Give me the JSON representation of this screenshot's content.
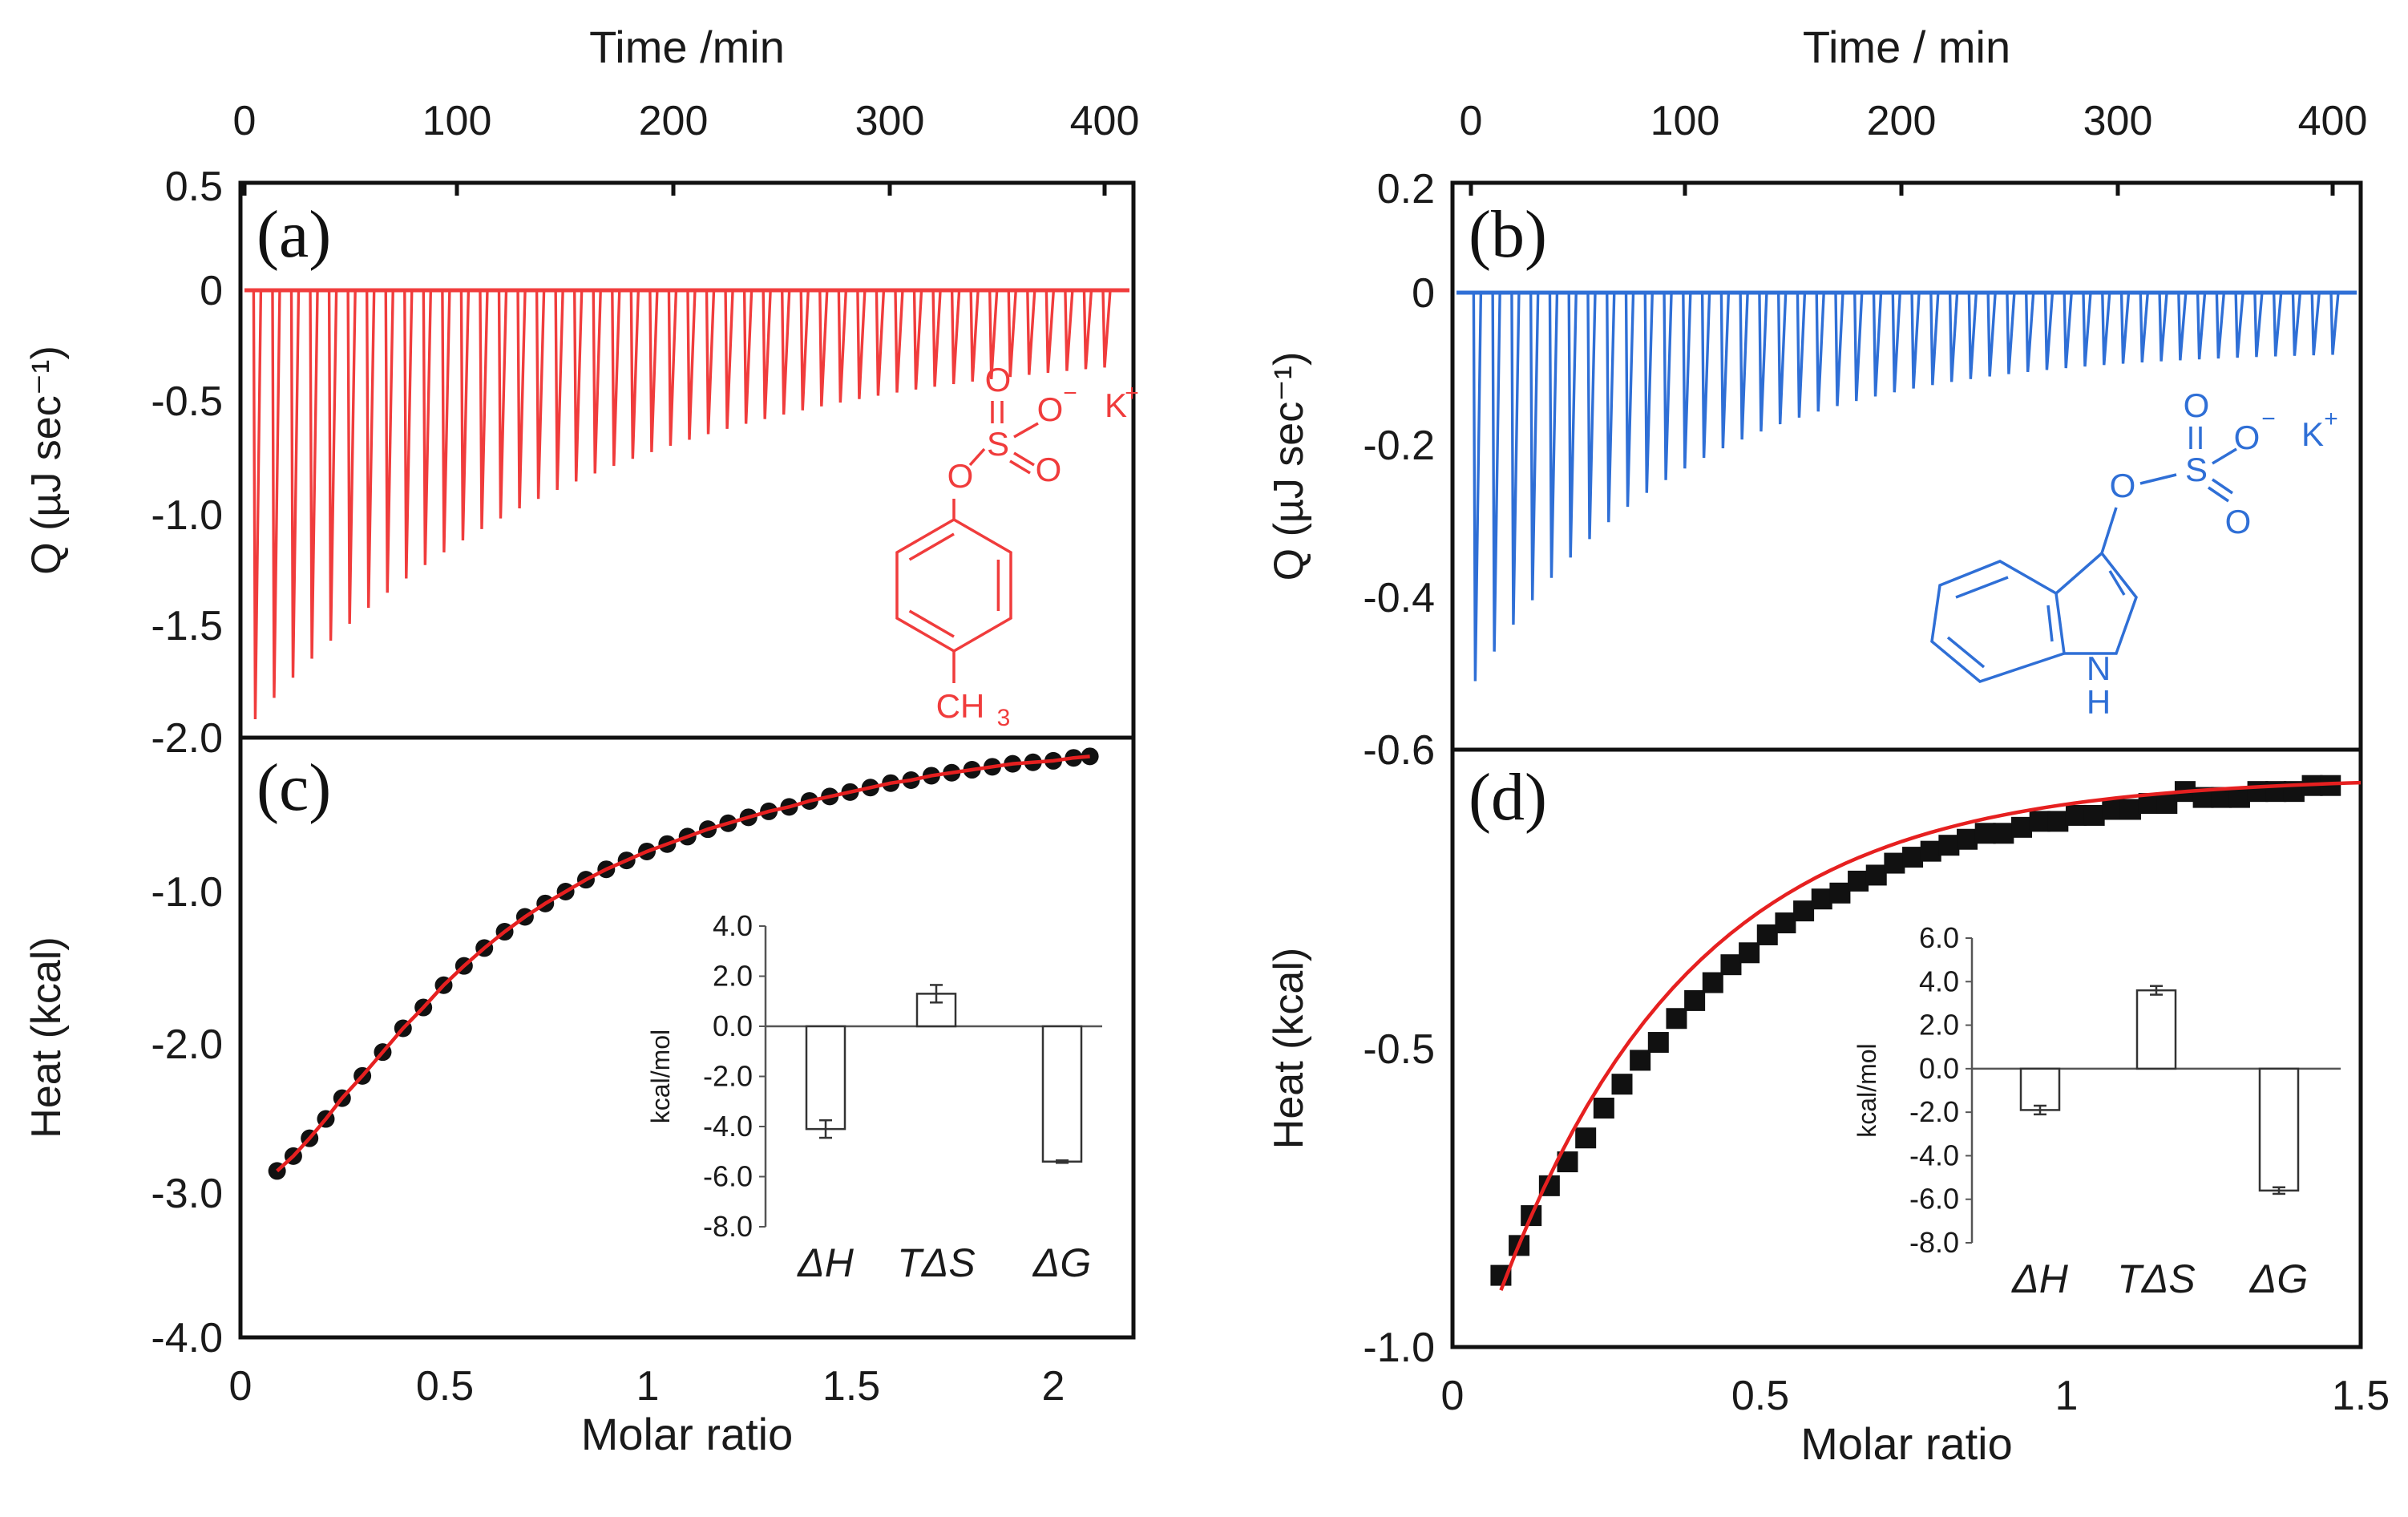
{
  "panels": [
    {
      "id": "a-c",
      "top": {
        "letter": "(a)",
        "x_title": "Time /min",
        "x_ticks": [
          "0",
          "100",
          "200",
          "300",
          "400"
        ],
        "x_range": [
          0,
          410
        ],
        "y_label": "Q (µJ sec⁻¹)",
        "y_ticks": [
          "0.5",
          "0",
          "-0.5",
          "-1.0",
          "-1.5",
          "-2.0"
        ],
        "y_range": [
          -2.0,
          0.5
        ],
        "color": "#f03c3c",
        "thermogram": {
          "n_peaks": 46,
          "t_start": 5,
          "t_end": 400,
          "peak_start": -1.92,
          "peak_end": -0.22,
          "decay": 0.05
        },
        "structure": {
          "name": "p-cresyl sulfate potassium",
          "labels": {
            "o_top": "O",
            "o_minus": "O",
            "minus": "−",
            "k": "K",
            "plus": "+",
            "s": "S",
            "o_right": "O",
            "o_left": "O",
            "ch3": "CH",
            "sub3": "3"
          }
        }
      },
      "bottom": {
        "letter": "(c)",
        "x_title": "Molar ratio",
        "x_ticks": [
          "0",
          "0.5",
          "1",
          "1.5",
          "2"
        ],
        "x_range": [
          0,
          2.2
        ],
        "y_label": "Heat (kcal)",
        "y_ticks": [
          "-1.0",
          "-2.0",
          "-3.0",
          "-4.0"
        ],
        "y_range": [
          -4.0,
          0
        ],
        "inset": {
          "y_label": "kcal/mol",
          "y_ticks": [
            "4.0",
            "2.0",
            "0.0",
            "-2.0",
            "-4.0",
            "-6.0",
            "-8.0"
          ],
          "y_range": [
            -8.0,
            4.0
          ],
          "categories": [
            "ΔH",
            "TΔS",
            "ΔG"
          ],
          "values": [
            -4.1,
            1.3,
            -5.4
          ],
          "errors": [
            0.35,
            0.35,
            0.05
          ]
        }
      }
    },
    {
      "id": "b-d",
      "top": {
        "letter": "(b)",
        "x_title": "Time / min",
        "x_ticks": [
          "0",
          "100",
          "200",
          "300",
          "400"
        ],
        "x_range": [
          -5,
          405
        ],
        "y_label": "Q (µJ sec⁻¹)",
        "y_ticks": [
          "0.2",
          "0",
          "-0.2",
          "-0.4",
          "-0.6"
        ],
        "y_range": [
          -0.6,
          0.2
        ],
        "color": "#2f6fd6",
        "thermogram": {
          "n_peaks": 46,
          "t_start": 2,
          "t_end": 400,
          "peak_start": -0.51,
          "peak_end": -0.075,
          "decay": 0.09
        },
        "structure": {
          "name": "indoxyl sulfate potassium",
          "labels": {
            "o_top": "O",
            "o_minus": "O",
            "minus": "−",
            "k": "K",
            "plus": "+",
            "s": "S",
            "o_right": "O",
            "o_left": "O",
            "nh_n": "N",
            "nh_h": "H"
          }
        }
      },
      "bottom": {
        "letter": "(d)",
        "x_title": "Molar ratio",
        "x_ticks": [
          "0",
          "0.5",
          "1",
          "1.5"
        ],
        "x_range": [
          0,
          1.5
        ],
        "y_label": "Heat (kcal)",
        "y_ticks": [
          "-0.6",
          "-0.5",
          "-1.0"
        ],
        "y_ticks_note": "",
        "inset": {
          "y_label": "kcal/mol",
          "y_ticks": [
            "6.0",
            "4.0",
            "2.0",
            "0.0",
            "-2.0",
            "-4.0",
            "-6.0",
            "-8.0"
          ],
          "y_range": [
            -8.0,
            6.0
          ],
          "categories": [
            "ΔH",
            "TΔS",
            "ΔG"
          ],
          "values": [
            -1.9,
            3.6,
            -5.6
          ],
          "errors": [
            0.2,
            0.2,
            0.15
          ]
        }
      }
    }
  ],
  "chart_data": [
    {
      "type": "line",
      "panel": "(a)",
      "xlabel": "Time /min",
      "ylabel": "Q (µJ sec⁻¹)",
      "xlim": [
        0,
        410
      ],
      "ylim": [
        -2.0,
        0.5
      ],
      "description_of_series": "46 injection peaks, first peak ≈ -1.92, last peak ≈ -0.22",
      "series": [
        {
          "name": "",
          "x": [
            5,
            92,
            180,
            267,
            355,
            400
          ],
          "y": [
            -1.92,
            -1.27,
            -0.83,
            -0.53,
            -0.33,
            -0.22
          ]
        }
      ]
    },
    {
      "type": "line",
      "panel": "(b)",
      "xlabel": "Time / min",
      "ylabel": "Q (µJ sec⁻¹)",
      "xlim": [
        -5,
        405
      ],
      "ylim": [
        -0.6,
        0.2
      ],
      "series": [
        {
          "name": "",
          "x": [
            2,
            90,
            180,
            270,
            360,
            400
          ],
          "y": [
            -0.51,
            -0.33,
            -0.19,
            -0.12,
            -0.09,
            -0.075
          ]
        }
      ]
    },
    {
      "type": "scatter",
      "panel": "(c)",
      "xlabel": "Molar ratio",
      "ylabel": "Heat (kcal)",
      "xlim": [
        0,
        2.2
      ],
      "ylim": [
        -4.0,
        0
      ],
      "series": [
        {
          "name": "data",
          "x": [
            0.09,
            0.13,
            0.17,
            0.21,
            0.25,
            0.3,
            0.35,
            0.4,
            0.45,
            0.5,
            0.55,
            0.6,
            0.65,
            0.7,
            0.75,
            0.8,
            0.85,
            0.9,
            0.95,
            1.0,
            1.05,
            1.1,
            1.15,
            1.2,
            1.25,
            1.3,
            1.35,
            1.4,
            1.45,
            1.5,
            1.55,
            1.6,
            1.65,
            1.7,
            1.75,
            1.8,
            1.85,
            1.9,
            1.95,
            2.0,
            2.05,
            2.09
          ],
          "y": [
            -2.88,
            -2.78,
            -2.66,
            -2.53,
            -2.39,
            -2.24,
            -2.08,
            -1.92,
            -1.78,
            -1.63,
            -1.5,
            -1.38,
            -1.27,
            -1.17,
            -1.08,
            -1.0,
            -0.92,
            -0.85,
            -0.79,
            -0.73,
            -0.68,
            -0.63,
            -0.58,
            -0.54,
            -0.5,
            -0.46,
            -0.43,
            -0.39,
            -0.36,
            -0.33,
            -0.3,
            -0.27,
            -0.25,
            -0.22,
            -0.2,
            -0.18,
            -0.16,
            -0.14,
            -0.13,
            -0.12,
            -0.1,
            -0.09
          ]
        },
        {
          "name": "fit",
          "x": [
            0.09,
            0.3,
            0.5,
            0.7,
            0.9,
            1.1,
            1.3,
            1.5,
            1.7,
            1.9,
            2.09
          ],
          "y": [
            -2.88,
            -2.24,
            -1.63,
            -1.17,
            -0.85,
            -0.63,
            -0.46,
            -0.33,
            -0.22,
            -0.14,
            -0.09
          ]
        }
      ]
    },
    {
      "type": "bar",
      "panel": "(c) inset",
      "ylabel": "kcal/mol",
      "categories": [
        "ΔH",
        "TΔS",
        "ΔG"
      ],
      "values": [
        -4.1,
        1.3,
        -5.4
      ],
      "ylim": [
        -8.0,
        4.0
      ]
    },
    {
      "type": "scatter",
      "panel": "(d)",
      "xlabel": "Molar ratio",
      "ylabel": "Heat (kcal)",
      "xlim": [
        0,
        1.5
      ],
      "y_tick_labels": [
        "-0.6",
        "-0.5",
        "-1.0"
      ],
      "y_tick_positions_note": "ticks labelled -0.6 (top), -0.5 (middle), -1.0 (bottom) as printed",
      "series": [
        {
          "name": "data",
          "x": [
            0.08,
            0.11,
            0.13,
            0.16,
            0.19,
            0.22,
            0.25,
            0.28,
            0.31,
            0.34,
            0.37,
            0.4,
            0.43,
            0.46,
            0.49,
            0.52,
            0.55,
            0.58,
            0.61,
            0.64,
            0.67,
            0.7,
            0.73,
            0.76,
            0.79,
            0.82,
            0.85,
            0.88,
            0.91,
            0.94,
            0.97,
            1.0,
            1.03,
            1.06,
            1.09,
            1.12,
            1.15,
            1.18,
            1.21,
            1.24,
            1.27,
            1.3,
            1.33,
            1.36,
            1.39,
            1.42,
            1.45
          ],
          "y": [
            0.12,
            0.17,
            0.22,
            0.27,
            0.31,
            0.35,
            0.4,
            0.44,
            0.48,
            0.51,
            0.55,
            0.58,
            0.61,
            0.64,
            0.66,
            0.69,
            0.71,
            0.73,
            0.75,
            0.76,
            0.78,
            0.79,
            0.81,
            0.82,
            0.83,
            0.84,
            0.85,
            0.86,
            0.86,
            0.87,
            0.88,
            0.88,
            0.89,
            0.89,
            0.9,
            0.9,
            0.91,
            0.91,
            0.93,
            0.92,
            0.92,
            0.92,
            0.93,
            0.93,
            0.93,
            0.94,
            0.94
          ]
        }
      ]
    },
    {
      "type": "bar",
      "panel": "(d) inset",
      "ylabel": "kcal/mol",
      "categories": [
        "ΔH",
        "TΔS",
        "ΔG"
      ],
      "values": [
        -1.9,
        3.6,
        -5.6
      ],
      "ylim": [
        -8.0,
        6.0
      ]
    }
  ]
}
